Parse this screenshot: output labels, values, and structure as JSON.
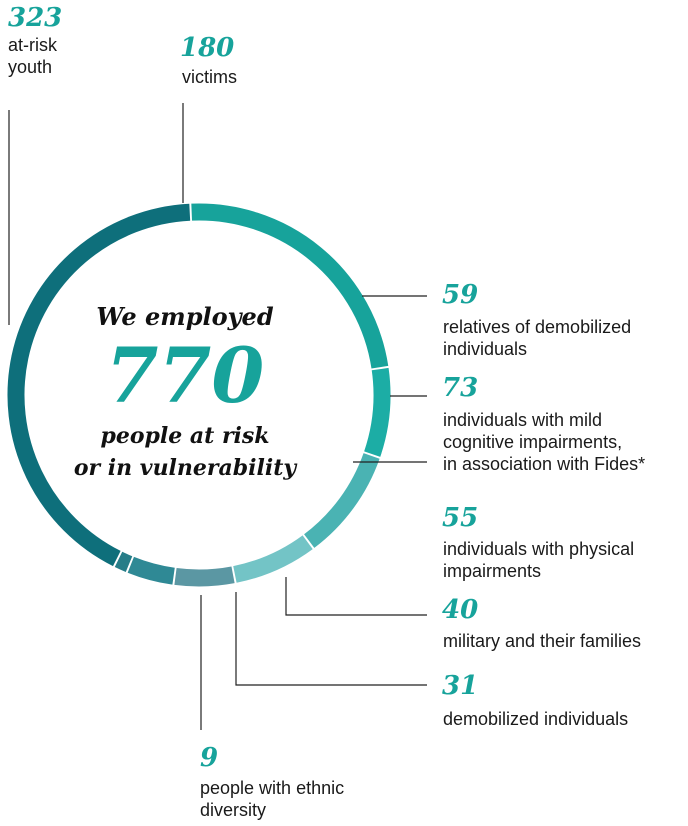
{
  "chart_data": {
    "type": "donut",
    "total": 770,
    "center_text": {
      "line1": "We employed",
      "number": "770",
      "line2": "people at risk",
      "line3": "or in vulnerability"
    },
    "segments": [
      {
        "value": 180,
        "value_label": "180",
        "label": "victims",
        "color": "#17a39b"
      },
      {
        "value": 59,
        "value_label": "59",
        "label": "relatives of demobilized individuals",
        "color": "#1cada5"
      },
      {
        "value": 73,
        "value_label": "73",
        "label": "individuals with mild cognitive impairments, in association with Fides*",
        "color": "#4ab3b3"
      },
      {
        "value": 55,
        "value_label": "55",
        "label": "individuals with physical impairments",
        "color": "#73c4c6"
      },
      {
        "value": 40,
        "value_label": "40",
        "label": "military and their families",
        "color": "#5b97a3"
      },
      {
        "value": 31,
        "value_label": "31",
        "label": "demobilized individuals",
        "color": "#2f8995"
      },
      {
        "value": 9,
        "value_label": "9",
        "label": "people with ethnic diversity",
        "color": "#267d88"
      },
      {
        "value": 323,
        "value_label": "323",
        "label": "at-risk youth",
        "color": "#0e6f7b"
      }
    ]
  },
  "labels": {
    "victims": {
      "number": "180",
      "text": "victims"
    },
    "relatives": {
      "number": "59",
      "text_lines": [
        "relatives of demobilized",
        "individuals"
      ]
    },
    "cognitive": {
      "number": "73",
      "text_lines": [
        "individuals with mild",
        "cognitive impairments,",
        "in association with Fides*"
      ]
    },
    "physical": {
      "number": "55",
      "text_lines": [
        "individuals with physical",
        "impairments"
      ]
    },
    "military": {
      "number": "40",
      "text": "military and their families"
    },
    "demobilized": {
      "number": "31",
      "text": "demobilized individuals"
    },
    "ethnic": {
      "number": "9",
      "text_lines": [
        "people with ethnic",
        "diversity"
      ]
    },
    "youth": {
      "number": "323",
      "text_lines": [
        "at-risk",
        "youth"
      ]
    }
  }
}
